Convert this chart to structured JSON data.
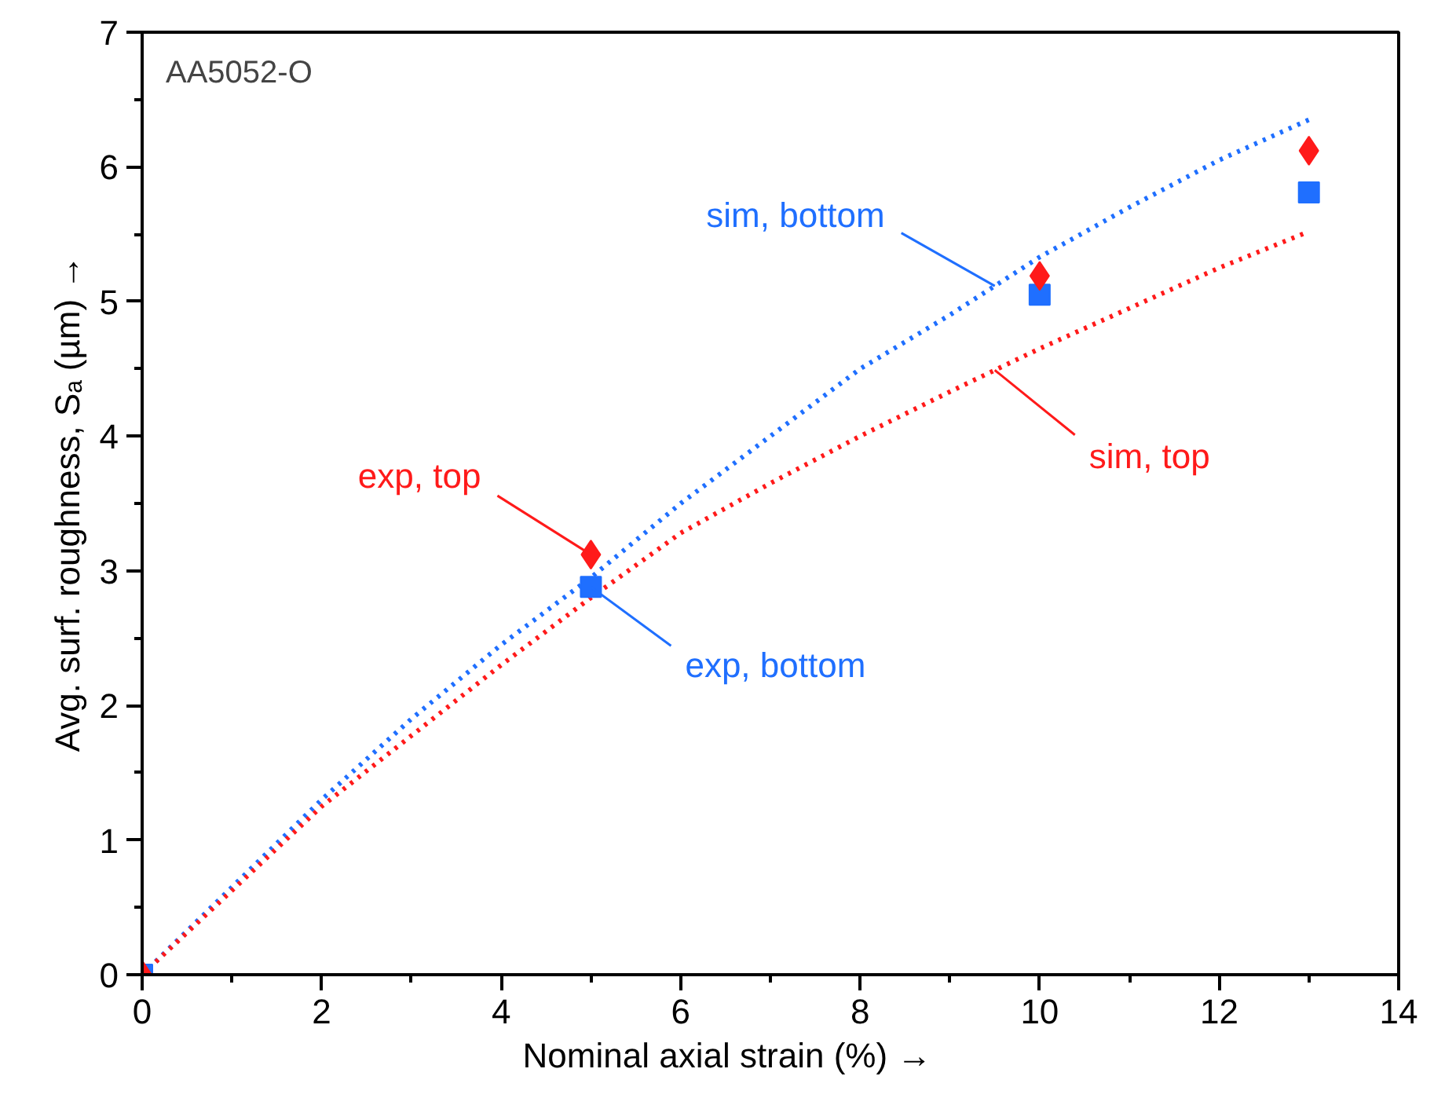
{
  "chart_data": {
    "type": "line",
    "xlabel": "Nominal axial strain (%)          →",
    "ylabel": "Avg. surf. roughness, Sₐ (µm) →",
    "annotations": [
      "AA5052-O"
    ],
    "xlim": [
      0,
      14
    ],
    "xticks": [
      0,
      2,
      4,
      6,
      8,
      10,
      12,
      14
    ],
    "ylim": [
      0,
      7
    ],
    "yticks": [
      0,
      1,
      2,
      3,
      4,
      5,
      6,
      7
    ],
    "grid": false,
    "series": [
      {
        "name": "sim, bottom",
        "color": "#1f6fff",
        "line_style": "dotted",
        "marker": "none",
        "x": [
          0,
          1,
          2,
          3,
          4,
          5,
          6,
          7,
          8,
          9,
          10,
          11,
          12,
          13
        ],
        "values": [
          0,
          0.65,
          1.3,
          1.9,
          2.45,
          2.95,
          3.5,
          4.0,
          4.5,
          4.9,
          5.33,
          5.7,
          6.05,
          6.35
        ]
      },
      {
        "name": "sim, top",
        "color": "#ff1a1a",
        "line_style": "dotted",
        "marker": "none",
        "x": [
          0,
          2,
          4,
          5,
          6,
          7,
          8,
          9,
          10,
          11,
          12,
          13
        ],
        "values": [
          0,
          1.25,
          2.3,
          2.8,
          3.28,
          3.65,
          4.0,
          4.33,
          4.65,
          4.95,
          5.25,
          5.52
        ]
      },
      {
        "name": "exp, bottom",
        "type": "scatter",
        "color": "#1f6fff",
        "marker": "square",
        "x": [
          0,
          5,
          10,
          13
        ],
        "values": [
          0,
          2.88,
          5.05,
          5.81
        ]
      },
      {
        "name": "exp, top",
        "type": "scatter",
        "color": "#ff1a1a",
        "marker": "diamond",
        "x": [
          0,
          5,
          10,
          13
        ],
        "values": [
          0,
          3.12,
          5.19,
          6.12
        ]
      }
    ]
  }
}
